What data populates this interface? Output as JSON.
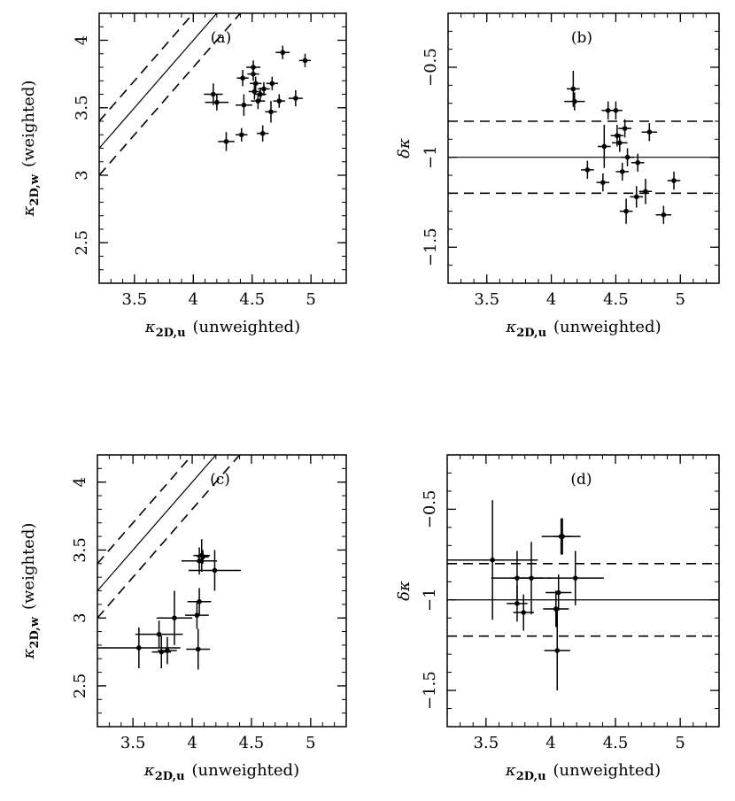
{
  "figure": {
    "description_text": ""
  },
  "chart_data": [
    {
      "id": "a",
      "type": "scatter",
      "panel_label": "(a)",
      "title": "",
      "xlabel": "κ2D,u (unweighted)",
      "xlabel_main": "κ",
      "xlabel_sub": "2D,u",
      "xlabel_rest": "(unweighted)",
      "ylabel": "κ2D,w (weighted)",
      "ylabel_main": "κ",
      "ylabel_sub": "2D,w",
      "ylabel_rest": "(weighted)",
      "xlim": [
        3.2,
        5.3
      ],
      "ylim": [
        2.2,
        4.2
      ],
      "xticks": [
        3.5,
        4,
        4.5,
        5
      ],
      "xtick_labels": [
        "3.5",
        "4",
        "4.5",
        "5"
      ],
      "yticks": [
        2.5,
        3,
        3.5,
        4
      ],
      "ytick_labels": [
        "2.5",
        "3",
        "3.5",
        "4"
      ],
      "ref_lines": [
        {
          "kind": "diagonal",
          "offset": 0,
          "style": "solid"
        },
        {
          "kind": "diagonal",
          "offset": 0.2,
          "style": "dashed"
        },
        {
          "kind": "diagonal",
          "offset": -0.2,
          "style": "dashed"
        }
      ],
      "points": [
        {
          "x": 4.17,
          "y": 3.6,
          "xerr": 0.08,
          "yerr": 0.08
        },
        {
          "x": 4.2,
          "y": 3.54,
          "xerr": 0.1,
          "yerr": 0.06
        },
        {
          "x": 4.28,
          "y": 3.25,
          "xerr": 0.07,
          "yerr": 0.07
        },
        {
          "x": 4.41,
          "y": 3.3,
          "xerr": 0.05,
          "yerr": 0.05
        },
        {
          "x": 4.42,
          "y": 3.72,
          "xerr": 0.05,
          "yerr": 0.06
        },
        {
          "x": 4.43,
          "y": 3.52,
          "xerr": 0.07,
          "yerr": 0.08
        },
        {
          "x": 4.51,
          "y": 3.8,
          "xerr": 0.06,
          "yerr": 0.05
        },
        {
          "x": 4.51,
          "y": 3.75,
          "xerr": 0.05,
          "yerr": 0.05
        },
        {
          "x": 4.52,
          "y": 3.62,
          "xerr": 0.05,
          "yerr": 0.06
        },
        {
          "x": 4.53,
          "y": 3.68,
          "xerr": 0.05,
          "yerr": 0.05
        },
        {
          "x": 4.55,
          "y": 3.55,
          "xerr": 0.06,
          "yerr": 0.06
        },
        {
          "x": 4.57,
          "y": 3.6,
          "xerr": 0.05,
          "yerr": 0.05
        },
        {
          "x": 4.59,
          "y": 3.31,
          "xerr": 0.05,
          "yerr": 0.06
        },
        {
          "x": 4.6,
          "y": 3.64,
          "xerr": 0.05,
          "yerr": 0.05
        },
        {
          "x": 4.66,
          "y": 3.47,
          "xerr": 0.05,
          "yerr": 0.08
        },
        {
          "x": 4.67,
          "y": 3.68,
          "xerr": 0.05,
          "yerr": 0.05
        },
        {
          "x": 4.73,
          "y": 3.55,
          "xerr": 0.05,
          "yerr": 0.05
        },
        {
          "x": 4.76,
          "y": 3.91,
          "xerr": 0.06,
          "yerr": 0.05
        },
        {
          "x": 4.87,
          "y": 3.57,
          "xerr": 0.06,
          "yerr": 0.06
        },
        {
          "x": 4.95,
          "y": 3.85,
          "xerr": 0.05,
          "yerr": 0.05
        }
      ]
    },
    {
      "id": "b",
      "type": "scatter",
      "panel_label": "(b)",
      "title": "",
      "xlabel": "κ2D,u (unweighted)",
      "xlabel_main": "κ",
      "xlabel_sub": "2D,u",
      "xlabel_rest": "(unweighted)",
      "ylabel": "δκ",
      "ylabel_main": "δκ",
      "ylabel_sub": "",
      "ylabel_rest": "",
      "xlim": [
        3.2,
        5.3
      ],
      "ylim": [
        -1.7,
        -0.2
      ],
      "xticks": [
        3.5,
        4,
        4.5,
        5
      ],
      "xtick_labels": [
        "3.5",
        "4",
        "4.5",
        "5"
      ],
      "yticks": [
        -1.5,
        -1,
        -0.5
      ],
      "ytick_labels": [
        "−1.5",
        "−1",
        "−0.5"
      ],
      "ref_lines": [
        {
          "kind": "horizontal",
          "y": -1.0,
          "style": "solid"
        },
        {
          "kind": "horizontal",
          "y": -0.8,
          "style": "dashed"
        },
        {
          "kind": "horizontal",
          "y": -1.2,
          "style": "dashed"
        }
      ],
      "points": [
        {
          "x": 4.17,
          "y": -0.62,
          "xerr": 0.05,
          "yerr": 0.1
        },
        {
          "x": 4.18,
          "y": -0.69,
          "xerr": 0.08,
          "yerr": 0.05
        },
        {
          "x": 4.28,
          "y": -1.07,
          "xerr": 0.05,
          "yerr": 0.05
        },
        {
          "x": 4.4,
          "y": -1.14,
          "xerr": 0.05,
          "yerr": 0.05
        },
        {
          "x": 4.41,
          "y": -0.94,
          "xerr": 0.05,
          "yerr": 0.12
        },
        {
          "x": 4.44,
          "y": -0.74,
          "xerr": 0.05,
          "yerr": 0.05
        },
        {
          "x": 4.5,
          "y": -0.74,
          "xerr": 0.05,
          "yerr": 0.05
        },
        {
          "x": 4.51,
          "y": -0.88,
          "xerr": 0.05,
          "yerr": 0.06
        },
        {
          "x": 4.53,
          "y": -0.92,
          "xerr": 0.06,
          "yerr": 0.05
        },
        {
          "x": 4.55,
          "y": -1.08,
          "xerr": 0.05,
          "yerr": 0.05
        },
        {
          "x": 4.57,
          "y": -0.84,
          "xerr": 0.05,
          "yerr": 0.05
        },
        {
          "x": 4.58,
          "y": -1.3,
          "xerr": 0.05,
          "yerr": 0.07
        },
        {
          "x": 4.59,
          "y": -1.0,
          "xerr": 0.05,
          "yerr": 0.05
        },
        {
          "x": 4.66,
          "y": -1.22,
          "xerr": 0.05,
          "yerr": 0.06
        },
        {
          "x": 4.67,
          "y": -1.03,
          "xerr": 0.05,
          "yerr": 0.05
        },
        {
          "x": 4.73,
          "y": -1.19,
          "xerr": 0.05,
          "yerr": 0.07
        },
        {
          "x": 4.76,
          "y": -0.86,
          "xerr": 0.06,
          "yerr": 0.05
        },
        {
          "x": 4.87,
          "y": -1.32,
          "xerr": 0.06,
          "yerr": 0.05
        },
        {
          "x": 4.95,
          "y": -1.13,
          "xerr": 0.05,
          "yerr": 0.05
        }
      ]
    },
    {
      "id": "c",
      "type": "scatter",
      "panel_label": "(c)",
      "title": "",
      "xlabel": "κ2D,u (unweighted)",
      "xlabel_main": "κ",
      "xlabel_sub": "2D,u",
      "xlabel_rest": "(unweighted)",
      "ylabel": "κ2D,w (weighted)",
      "ylabel_main": "κ",
      "ylabel_sub": "2D,w",
      "ylabel_rest": "(weighted)",
      "xlim": [
        3.2,
        5.3
      ],
      "ylim": [
        2.2,
        4.2
      ],
      "xticks": [
        3.5,
        4,
        4.5,
        5
      ],
      "xtick_labels": [
        "3.5",
        "4",
        "4.5",
        "5"
      ],
      "yticks": [
        2.5,
        3,
        3.5,
        4
      ],
      "ytick_labels": [
        "2.5",
        "3",
        "3.5",
        "4"
      ],
      "ref_lines": [
        {
          "kind": "diagonal",
          "offset": 0,
          "style": "solid"
        },
        {
          "kind": "diagonal",
          "offset": 0.2,
          "style": "dashed"
        },
        {
          "kind": "diagonal",
          "offset": -0.2,
          "style": "dashed"
        }
      ],
      "points": [
        {
          "x": 3.55,
          "y": 2.78,
          "xerr": 0.35,
          "yerr": 0.15
        },
        {
          "x": 3.72,
          "y": 2.88,
          "xerr": 0.2,
          "yerr": 0.1
        },
        {
          "x": 3.74,
          "y": 2.75,
          "xerr": 0.08,
          "yerr": 0.12
        },
        {
          "x": 3.79,
          "y": 2.76,
          "xerr": 0.08,
          "yerr": 0.1
        },
        {
          "x": 3.85,
          "y": 3.0,
          "xerr": 0.15,
          "yerr": 0.2
        },
        {
          "x": 4.04,
          "y": 3.02,
          "xerr": 0.1,
          "yerr": 0.1
        },
        {
          "x": 4.05,
          "y": 2.77,
          "xerr": 0.1,
          "yerr": 0.15
        },
        {
          "x": 4.06,
          "y": 3.12,
          "xerr": 0.1,
          "yerr": 0.1
        },
        {
          "x": 4.06,
          "y": 3.42,
          "xerr": 0.15,
          "yerr": 0.1
        },
        {
          "x": 4.08,
          "y": 3.46,
          "xerr": 0.07,
          "yerr": 0.12
        },
        {
          "x": 4.09,
          "y": 3.45,
          "xerr": 0.05,
          "yerr": 0.05
        },
        {
          "x": 4.19,
          "y": 3.35,
          "xerr": 0.22,
          "yerr": 0.15
        }
      ]
    },
    {
      "id": "d",
      "type": "scatter",
      "panel_label": "(d)",
      "title": "",
      "xlabel": "κ2D,u (unweighted)",
      "xlabel_main": "κ",
      "xlabel_sub": "2D,u",
      "xlabel_rest": "(unweighted)",
      "ylabel": "δκ",
      "ylabel_main": "δκ",
      "ylabel_sub": "",
      "ylabel_rest": "",
      "xlim": [
        3.2,
        5.3
      ],
      "ylim": [
        -1.7,
        -0.2
      ],
      "xticks": [
        3.5,
        4,
        4.5,
        5
      ],
      "xtick_labels": [
        "3.5",
        "4",
        "4.5",
        "5"
      ],
      "yticks": [
        -1.5,
        -1,
        -0.5
      ],
      "ytick_labels": [
        "−1.5",
        "−1",
        "−0.5"
      ],
      "ref_lines": [
        {
          "kind": "horizontal",
          "y": -1.0,
          "style": "solid"
        },
        {
          "kind": "horizontal",
          "y": -0.8,
          "style": "dashed"
        },
        {
          "kind": "horizontal",
          "y": -1.2,
          "style": "dashed"
        }
      ],
      "points": [
        {
          "x": 3.55,
          "y": -0.78,
          "xerr": 0.35,
          "yerr": 0.33
        },
        {
          "x": 3.74,
          "y": -0.88,
          "xerr": 0.2,
          "yerr": 0.15
        },
        {
          "x": 3.74,
          "y": -1.02,
          "xerr": 0.08,
          "yerr": 0.1
        },
        {
          "x": 3.79,
          "y": -1.07,
          "xerr": 0.08,
          "yerr": 0.1
        },
        {
          "x": 3.85,
          "y": -0.88,
          "xerr": 0.15,
          "yerr": 0.2
        },
        {
          "x": 4.04,
          "y": -1.05,
          "xerr": 0.1,
          "yerr": 0.1
        },
        {
          "x": 4.05,
          "y": -1.28,
          "xerr": 0.1,
          "yerr": 0.22
        },
        {
          "x": 4.06,
          "y": -0.96,
          "xerr": 0.1,
          "yerr": 0.1
        },
        {
          "x": 4.08,
          "y": -0.65,
          "xerr": 0.15,
          "yerr": 0.1
        },
        {
          "x": 4.09,
          "y": -0.65,
          "xerr": 0.07,
          "yerr": 0.1
        },
        {
          "x": 4.19,
          "y": -0.88,
          "xerr": 0.22,
          "yerr": 0.15
        }
      ]
    }
  ]
}
